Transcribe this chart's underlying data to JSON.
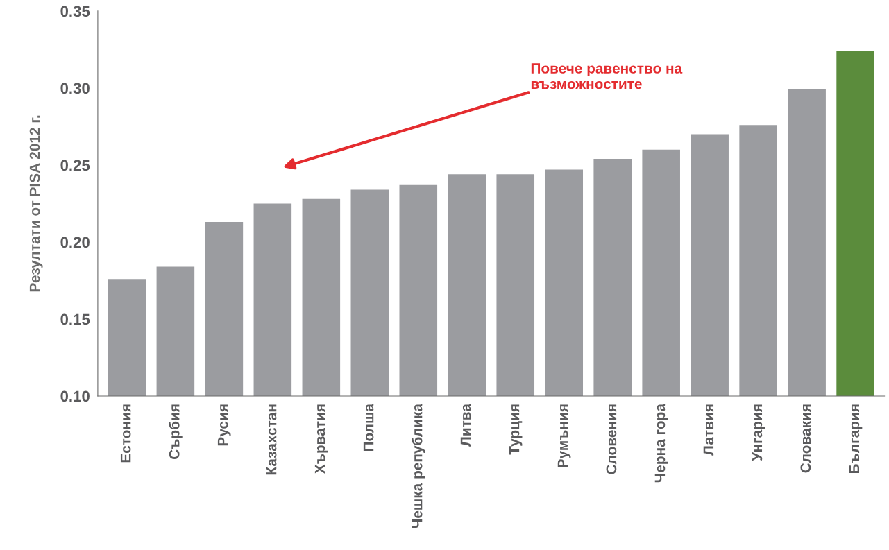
{
  "chart_data": {
    "type": "bar",
    "ylabel": "Резултати от PISA 2012 г.",
    "categories": [
      "Естония",
      "Сърбия",
      "Русия",
      "Казахстан",
      "Хърватия",
      "Полша",
      "Чешка република",
      "Литва",
      "Турция",
      "Румъния",
      "Словения",
      "Черна гора",
      "Латвия",
      "Унгария",
      "Словакия",
      "България"
    ],
    "values": [
      0.176,
      0.184,
      0.213,
      0.225,
      0.228,
      0.234,
      0.237,
      0.244,
      0.244,
      0.247,
      0.254,
      0.26,
      0.27,
      0.276,
      0.299,
      0.324
    ],
    "colors": [
      "#9b9ca0",
      "#9b9ca0",
      "#9b9ca0",
      "#9b9ca0",
      "#9b9ca0",
      "#9b9ca0",
      "#9b9ca0",
      "#9b9ca0",
      "#9b9ca0",
      "#9b9ca0",
      "#9b9ca0",
      "#9b9ca0",
      "#9b9ca0",
      "#9b9ca0",
      "#9b9ca0",
      "#5b8c3c"
    ],
    "ylim": [
      0.1,
      0.35
    ],
    "yticks": [
      {
        "value": 0.1,
        "label": "0.10"
      },
      {
        "value": 0.15,
        "label": "0.15"
      },
      {
        "value": 0.2,
        "label": "0.20"
      },
      {
        "value": 0.25,
        "label": "0.25"
      },
      {
        "value": 0.3,
        "label": "0.30"
      },
      {
        "value": 0.35,
        "label": "0.35"
      }
    ],
    "annotations": [
      "Повече равенство на\nвъзможностите"
    ],
    "grid": false,
    "legend": false
  }
}
